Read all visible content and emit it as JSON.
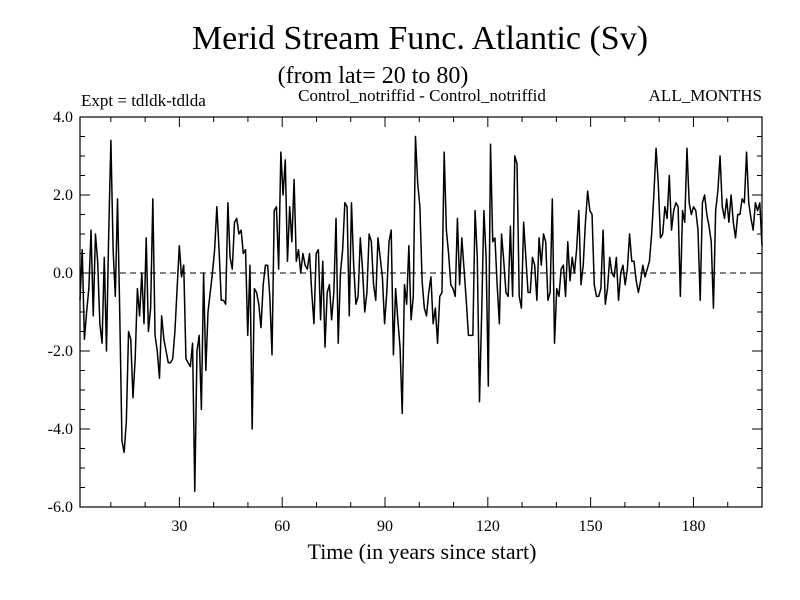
{
  "chart_data": {
    "type": "line",
    "title": "Merid Stream Func. Atlantic (Sv)",
    "subtitle": "(from lat= 20 to 80)",
    "annotations": {
      "left": "Expt = tdldk-tdlda",
      "center": "Control_notriffid - Control_notriffid",
      "right": "ALL_MONTHS"
    },
    "xlabel": "Time (in years since start)",
    "ylabel": "",
    "xlim": [
      1,
      200
    ],
    "ylim": [
      -6.0,
      4.0
    ],
    "x_ticks": [
      {
        "value": 30,
        "label": "30"
      },
      {
        "value": 60,
        "label": "60"
      },
      {
        "value": 90,
        "label": "90"
      },
      {
        "value": 120,
        "label": "120"
      },
      {
        "value": 150,
        "label": "150"
      },
      {
        "value": 180,
        "label": "180"
      }
    ],
    "y_ticks": [
      {
        "value": 4.0,
        "label": "4.0"
      },
      {
        "value": 2.0,
        "label": "2.0"
      },
      {
        "value": 0.0,
        "label": "0.0"
      },
      {
        "value": -2.0,
        "label": "-2.0"
      },
      {
        "value": -4.0,
        "label": "-4.0"
      },
      {
        "value": -6.0,
        "label": "-6.0"
      }
    ],
    "reference_line": {
      "y": 0.0,
      "style": "dashed"
    },
    "series": [
      {
        "name": "tdldk-tdlda",
        "values": [
          -0.7,
          0.6,
          -1.7,
          -1.0,
          -0.4,
          1.1,
          -1.1,
          1.0,
          0.3,
          -1.3,
          -1.8,
          0.4,
          -2.0,
          1.0,
          3.4,
          0.6,
          -0.6,
          1.9,
          -1.0,
          -4.3,
          -4.6,
          -3.8,
          -1.5,
          -1.7,
          -3.2,
          -2.2,
          -0.4,
          -1.1,
          0.0,
          -1.3,
          0.9,
          -1.5,
          -0.9,
          1.9,
          -1.6,
          -2.0,
          -2.7,
          -1.1,
          -1.7,
          -2.0,
          -2.3,
          -2.3,
          -2.2,
          -1.5,
          -0.4,
          0.7,
          -0.1,
          0.2,
          -2.2,
          -2.3,
          -2.4,
          -1.8,
          -5.6,
          -2.0,
          -1.6,
          -3.5,
          0.0,
          -2.5,
          -1.0,
          -0.5,
          0.0,
          0.6,
          1.7,
          0.6,
          -0.7,
          -0.7,
          -0.8,
          1.8,
          0.4,
          0.1,
          1.3,
          1.4,
          1.0,
          1.1,
          0.5,
          0.6,
          -1.6,
          0.2,
          -4.0,
          -0.4,
          -0.5,
          -0.8,
          -1.4,
          -0.3,
          0.2,
          0.2,
          -0.6,
          -2.1,
          1.6,
          1.7,
          0.1,
          3.1,
          2.0,
          2.9,
          0.3,
          1.7,
          0.8,
          2.4,
          0.3,
          0.6,
          0.0,
          0.5,
          0.2,
          0.1,
          0.5,
          -0.5,
          -1.3,
          0.5,
          0.6,
          -1.2,
          0.3,
          -1.9,
          -0.5,
          -0.3,
          -1.2,
          -0.5,
          1.4,
          -1.8,
          0.0,
          0.6,
          1.8,
          1.7,
          -1.1,
          1.8,
          0.2,
          -0.8,
          -0.6,
          0.9,
          0.1,
          -1.0,
          -0.5,
          1.0,
          0.8,
          -0.3,
          -0.7,
          0.9,
          0.4,
          -0.1,
          -1.3,
          -0.5,
          0.8,
          1.1,
          -2.1,
          -0.4,
          -1.2,
          -1.9,
          -3.6,
          -0.3,
          -0.8,
          0.7,
          -1.2,
          -0.6,
          3.5,
          2.3,
          1.7,
          -0.2,
          -0.9,
          -1.1,
          -0.5,
          -0.1,
          -1.3,
          -0.9,
          -1.8,
          -0.6,
          -0.5,
          3.1,
          1.1,
          0.5,
          -0.3,
          -0.4,
          -0.6,
          1.4,
          -0.3,
          0.9,
          0.1,
          -0.7,
          -1.6,
          -1.6,
          -1.6,
          1.6,
          0.4,
          -3.3,
          -1.0,
          1.6,
          0.4,
          -2.9,
          3.3,
          0.8,
          0.9,
          -0.3,
          -1.3,
          1.0,
          0.3,
          -0.5,
          -0.6,
          1.2,
          -0.6,
          3.0,
          2.8,
          -0.6,
          -0.9,
          1.3,
          0.4,
          -0.5,
          -0.5,
          0.4,
          0.2,
          -0.7,
          0.9,
          0.2,
          1.0,
          0.8,
          -0.7,
          -0.5,
          1.9,
          -1.8,
          -0.4,
          -0.6,
          0.1,
          0.2,
          -0.6,
          0.8,
          -0.2,
          0.4,
          0.0,
          0.6,
          1.6,
          -0.3,
          0.2,
          1.3,
          2.1,
          1.6,
          1.5,
          -0.3,
          -0.6,
          -0.6,
          -0.4,
          1.1,
          -0.8,
          -0.4,
          0.4,
          0.0,
          -0.1,
          0.4,
          -0.7,
          0.0,
          0.2,
          -0.3,
          0.1,
          1.0,
          0.3,
          0.3,
          -0.2,
          -0.5,
          -0.2,
          0.2,
          -0.1,
          0.1,
          0.3,
          1.0,
          2.0,
          3.2,
          2.3,
          0.9,
          1.0,
          1.7,
          1.4,
          2.5,
          1.1,
          1.6,
          1.8,
          1.7,
          -0.6,
          1.6,
          1.3,
          3.2,
          1.8,
          1.5,
          1.7,
          1.6,
          1.1,
          -0.7,
          1.8,
          2.0,
          1.5,
          1.2,
          0.8,
          -0.9,
          1.6,
          2.1,
          3.0,
          1.7,
          1.4,
          1.9,
          1.3,
          2.0,
          1.3,
          0.9,
          1.5,
          1.5,
          1.9,
          1.8,
          3.1,
          1.8,
          1.4,
          1.1,
          1.8,
          1.6,
          1.8,
          0.7
        ]
      }
    ]
  }
}
